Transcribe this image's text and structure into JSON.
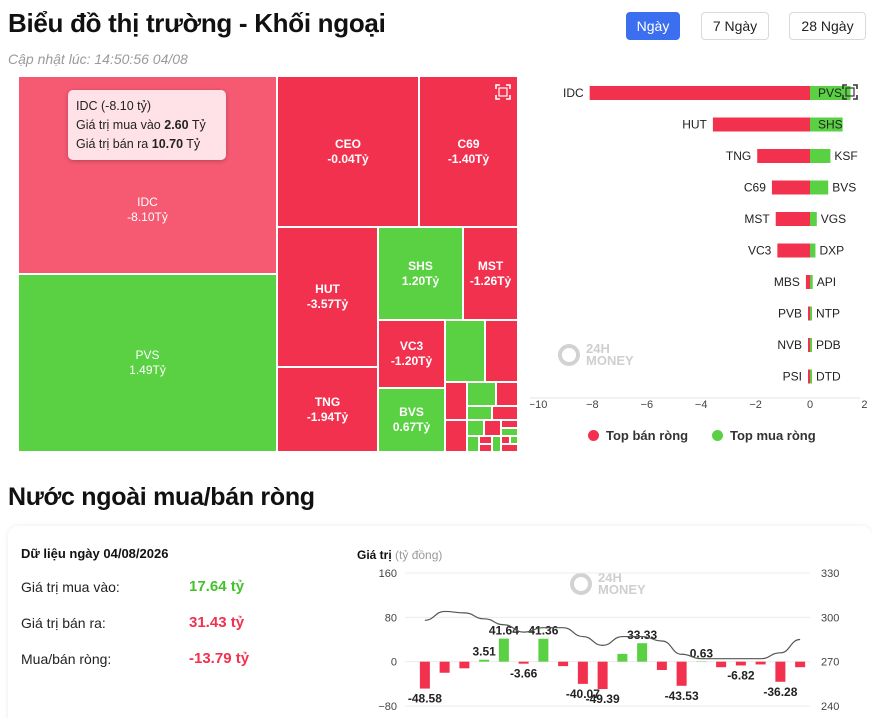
{
  "header": {
    "title": "Biểu đồ thị trường - Khối ngoại",
    "updated_label": "Cập nhật lúc:",
    "updated_time": "14:50:56 04/08"
  },
  "range_buttons": [
    {
      "label": "Ngày",
      "active": true
    },
    {
      "label": "7 Ngày",
      "active": false
    },
    {
      "label": "28 Ngày",
      "active": false
    }
  ],
  "treemap": {
    "tiles": [
      {
        "symbol": "IDC",
        "value": "-8.10Tỷ",
        "net": -8.1
      },
      {
        "symbol": "CEO",
        "value": "-0.04Tỷ",
        "net": -0.04
      },
      {
        "symbol": "C69",
        "value": "-1.40Tỷ",
        "net": -1.4
      },
      {
        "symbol": "PVS",
        "value": "1.49Tỷ",
        "net": 1.49
      },
      {
        "symbol": "HUT",
        "value": "-3.57Tỷ",
        "net": -3.57
      },
      {
        "symbol": "SHS",
        "value": "1.20Tỷ",
        "net": 1.2
      },
      {
        "symbol": "MST",
        "value": "-1.26Tỷ",
        "net": -1.26
      },
      {
        "symbol": "VC3",
        "value": "-1.20Tỷ",
        "net": -1.2
      },
      {
        "symbol": "TNG",
        "value": "-1.94Tỷ",
        "net": -1.94
      },
      {
        "symbol": "BVS",
        "value": "0.67Tỷ",
        "net": 0.67
      }
    ],
    "tooltip": {
      "title": "IDC (-8.10 tỷ)",
      "buy_label": "Giá trị mua vào",
      "buy_value": "2.60",
      "sell_label": "Giá trị bán ra",
      "sell_value": "10.70",
      "unit": "Tỷ"
    }
  },
  "top_chart": {
    "sell_symbols": [
      "IDC",
      "HUT",
      "TNG",
      "C69",
      "MST",
      "VC3",
      "MBS",
      "PVB",
      "NVB",
      "PSI"
    ],
    "sell_values": [
      -8.1,
      -3.57,
      -1.94,
      -1.4,
      -1.26,
      -1.2,
      -0.15,
      -0.05,
      -0.03,
      -0.01
    ],
    "buy_symbols": [
      "PVS",
      "SHS",
      "KSF",
      "BVS",
      "VGS",
      "DXP",
      "API",
      "NTP",
      "PDB",
      "DTD"
    ],
    "buy_values": [
      1.49,
      1.2,
      0.75,
      0.67,
      0.25,
      0.2,
      0.1,
      0.04,
      0.02,
      0.01
    ],
    "ticks": [
      "−10",
      "−8",
      "−6",
      "−4",
      "−2",
      "0",
      "2"
    ],
    "legend_sell": "Top bán ròng",
    "legend_buy": "Top mua ròng",
    "colors": {
      "sell": "#f2314f",
      "buy": "#5ad043"
    }
  },
  "watermark": {
    "line1": "24H",
    "line2": "MONEY"
  },
  "net_section": {
    "title": "Nước ngoài mua/bán ròng",
    "date_label": "Dữ liệu ngày 04/08/2026",
    "buy_label": "Giá trị mua vào:",
    "buy_value": "17.64 tỷ",
    "sell_label": "Giá trị bán ra:",
    "sell_value": "31.43 tỷ",
    "net_label": "Mua/bán ròng:",
    "net_value": "-13.79 tỷ"
  },
  "chart_data": {
    "type": "bar",
    "ylabel": "Giá trị",
    "yunit": "(tỷ đồng)",
    "y_ticks": [
      "160",
      "80",
      "0",
      "−80"
    ],
    "y2_ticks": [
      "330",
      "300",
      "270",
      "240"
    ],
    "ylim": [
      -80,
      160
    ],
    "y2lim": [
      240,
      330
    ],
    "values": [
      -48.58,
      -20,
      -12,
      3.51,
      41.64,
      -3.66,
      41.36,
      -8,
      -40.07,
      -49.39,
      14,
      33.33,
      -15,
      -43.53,
      0.63,
      -10,
      -6.82,
      -5,
      -36.28,
      -10
    ],
    "labels": [
      "-48.58",
      "",
      "",
      "3.51",
      "41.64",
      "-3.66",
      "41.36",
      "",
      "-40.07",
      "-49.39",
      "",
      "33.33",
      "",
      "-43.53",
      "0.63",
      "",
      "-6.82",
      "",
      "-36.28",
      ""
    ],
    "line": [
      298,
      304,
      303,
      299,
      295,
      290,
      293,
      293,
      287,
      281,
      287,
      287,
      284,
      275,
      272,
      272,
      272,
      272,
      276,
      285
    ],
    "colors": {
      "positive": "#5ad043",
      "negative": "#f2314f",
      "line": "#555555"
    }
  }
}
